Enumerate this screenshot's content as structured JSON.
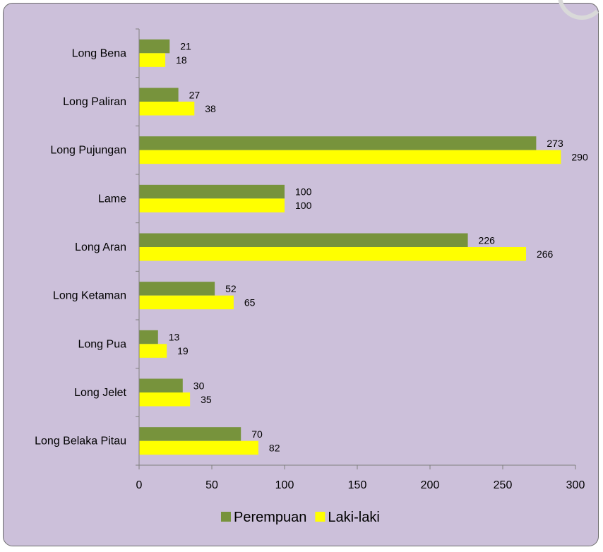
{
  "chart_data": {
    "type": "bar",
    "orientation": "horizontal",
    "categories": [
      "Long Bena",
      "Long Paliran",
      "Long Pujungan",
      "Lame",
      "Long Aran",
      "Long Ketaman",
      "Long Pua",
      "Long Jelet",
      "Long Belaka Pitau"
    ],
    "series": [
      {
        "name": "Perempuan",
        "color": "#77933c",
        "values": [
          21,
          27,
          273,
          100,
          226,
          52,
          13,
          30,
          70
        ]
      },
      {
        "name": "Laki-laki",
        "color": "#ffff00",
        "values": [
          18,
          38,
          290,
          100,
          266,
          65,
          19,
          35,
          82
        ]
      }
    ],
    "xlim": [
      0,
      300
    ],
    "xticks": [
      0,
      50,
      100,
      150,
      200,
      250,
      300
    ],
    "data_labels": true,
    "grid": false,
    "legend_position": "bottom",
    "background_color": "#ccc0da"
  }
}
